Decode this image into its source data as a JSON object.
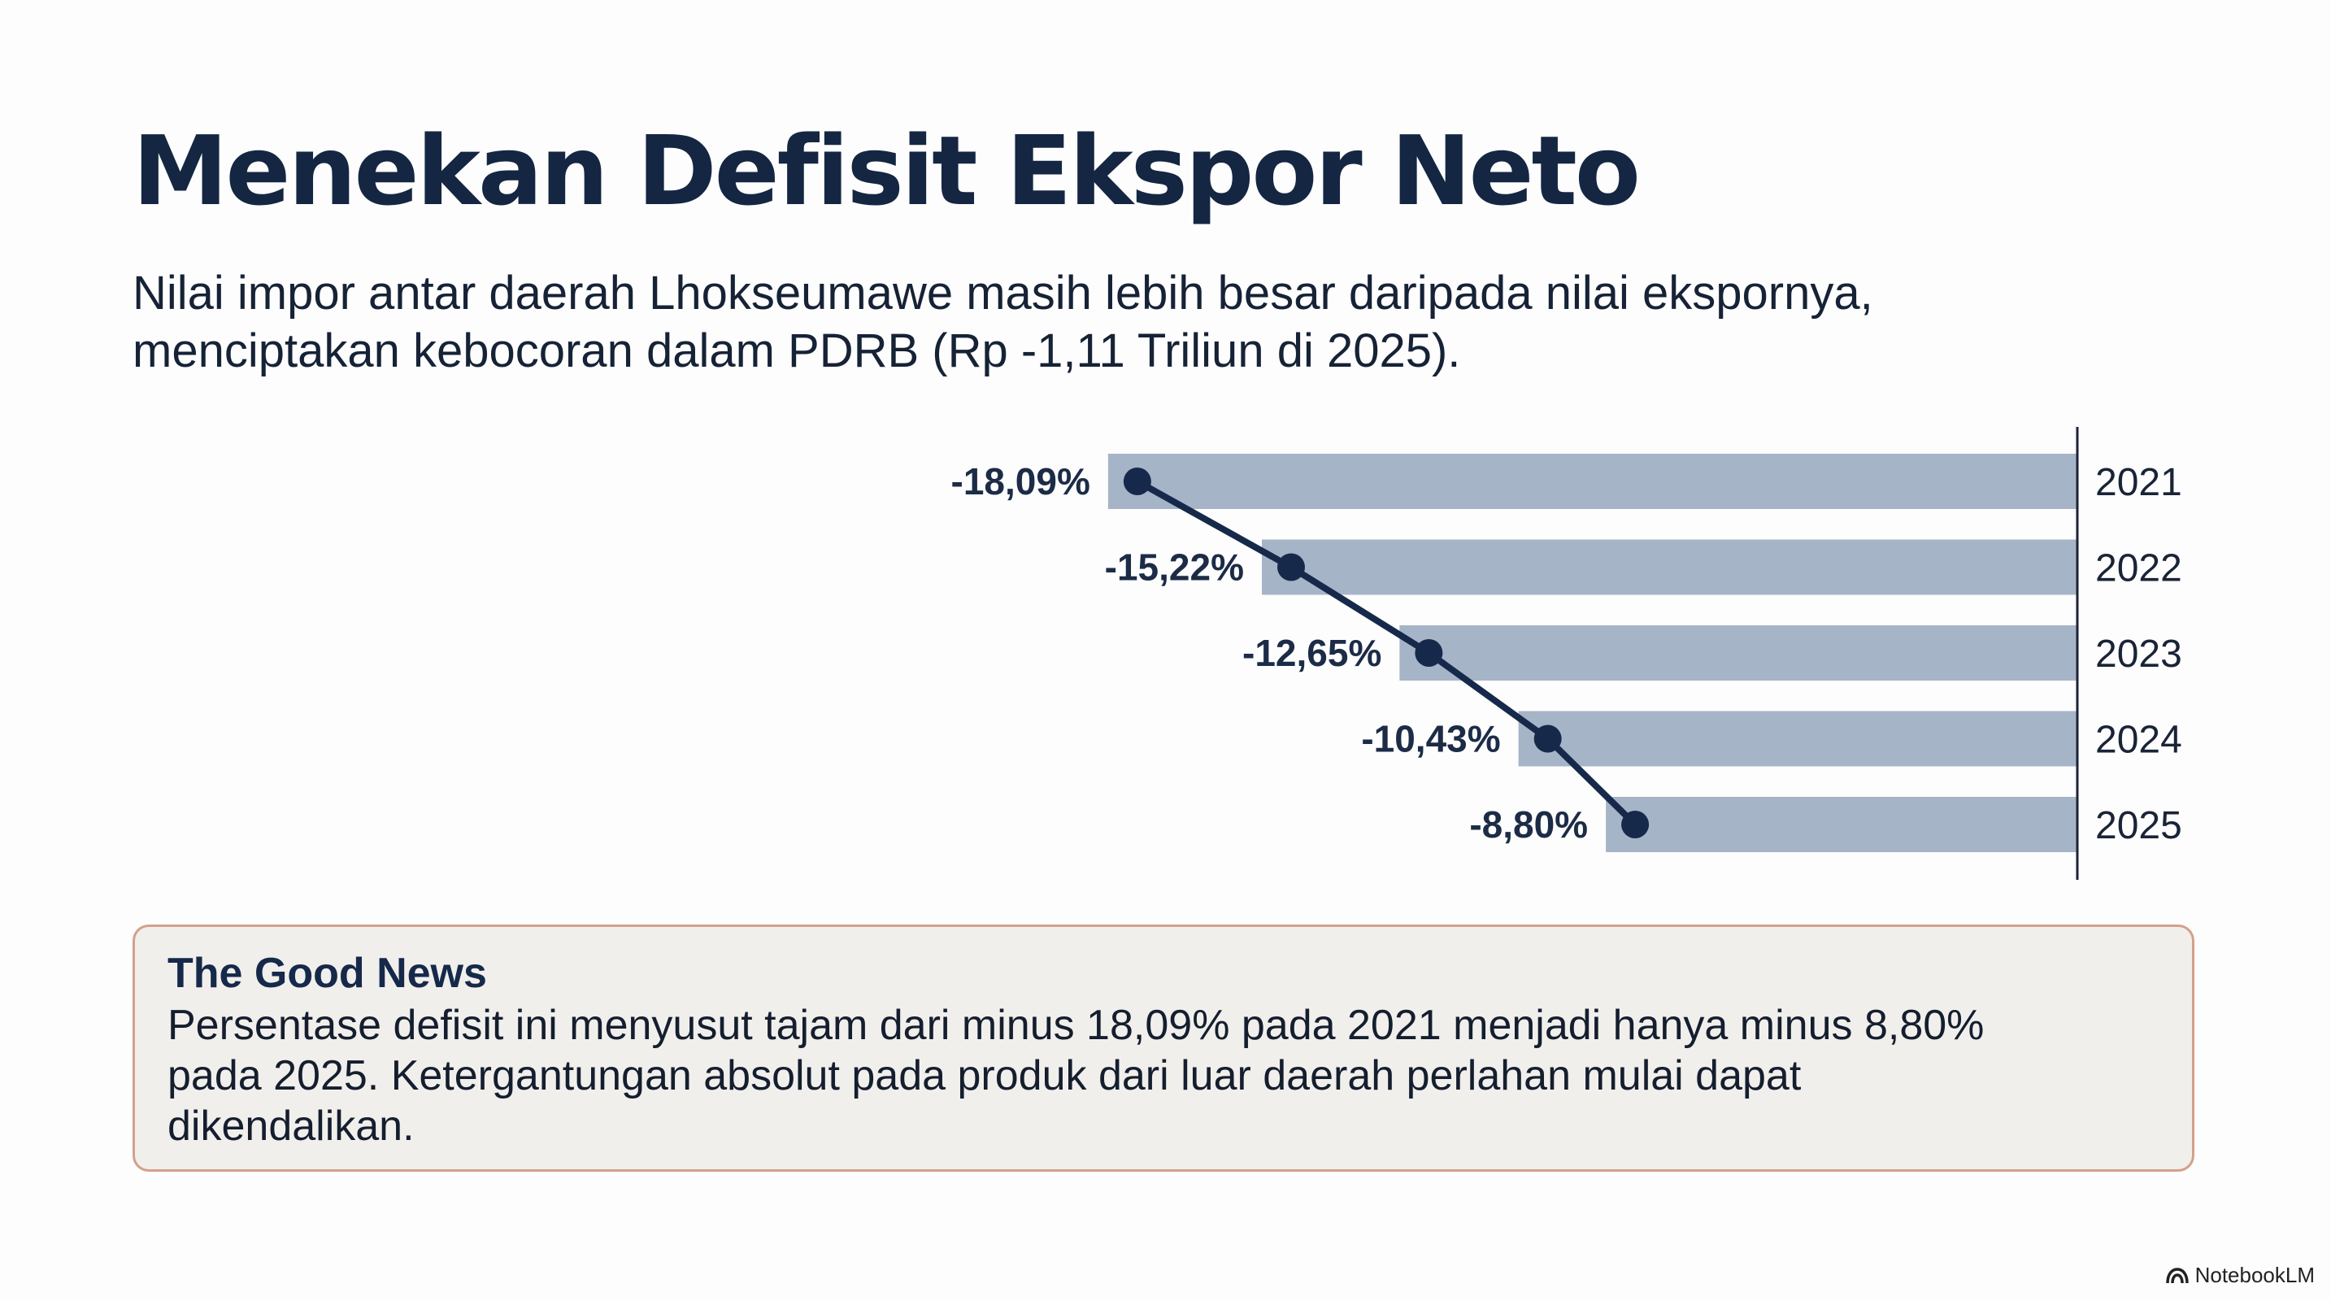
{
  "header": {
    "title": "Menekan Defisit Ekspor Neto",
    "subtitle_line1": "Nilai impor antar daerah Lhokseumawe masih lebih besar daripada nilai ekspornya,",
    "subtitle_line2": "menciptakan kebocoran dalam PDRB (Rp -1,11 Triliun di 2025)."
  },
  "chart_data": {
    "type": "bar",
    "orientation": "horizontal",
    "categories": [
      "2021",
      "2022",
      "2023",
      "2024",
      "2025"
    ],
    "series": [
      {
        "values": [
          -18.09,
          -15.22,
          -12.65,
          -10.43,
          -8.8
        ],
        "labels": [
          "-18,09%",
          "-15,22%",
          "-12,65%",
          "-10,43%",
          "-8,80%"
        ]
      }
    ],
    "xlim": [
      -21,
      0
    ],
    "category_axis_position": "right",
    "connected_markers": true,
    "grid": false,
    "bar_color": "#a6b4c8",
    "line_color": "#17294a"
  },
  "news": {
    "title": "The Good News",
    "body_line1": "Persentase defisit ini menyusut tajam dari minus 18,09% pada 2021 menjadi hanya minus 8,80%",
    "body_line2": "pada 2025. Ketergantungan absolut pada produk dari luar daerah perlahan mulai dapat",
    "body_line3": "dikendalikan."
  },
  "brand": {
    "name": "NotebookLM",
    "icon": "notebooklm-logo-icon"
  }
}
